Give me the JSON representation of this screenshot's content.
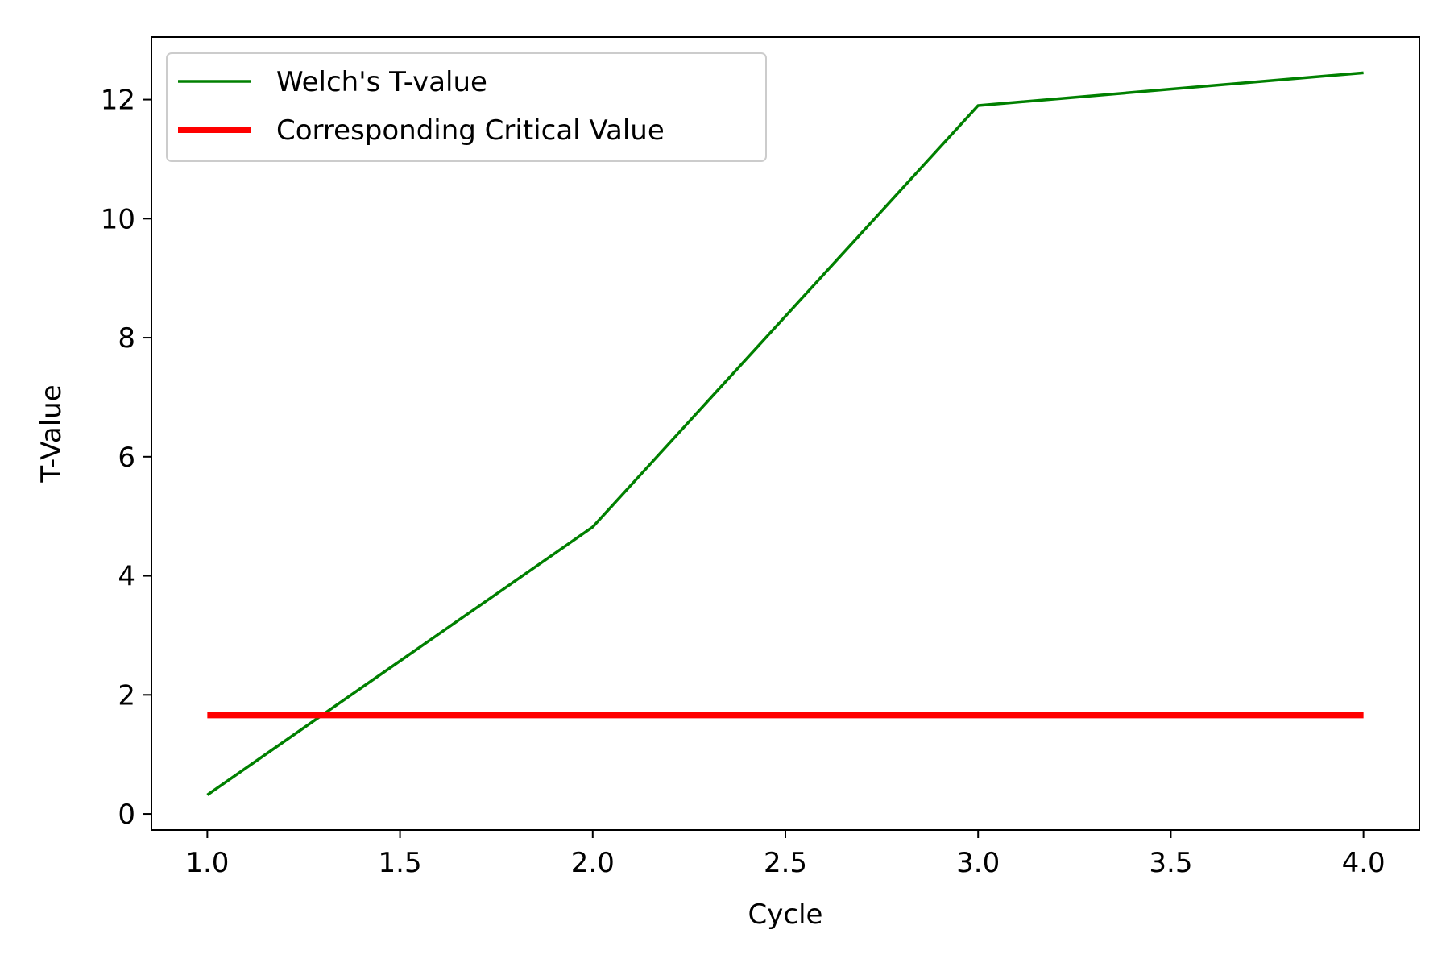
{
  "chart_data": {
    "type": "line",
    "title": "",
    "xlabel": "Cycle",
    "ylabel": "T-Value",
    "xlim": [
      0.855,
      4.145
    ],
    "ylim": [
      -0.27,
      13.05
    ],
    "xticks": [
      1.0,
      1.5,
      2.0,
      2.5,
      3.0,
      3.5,
      4.0
    ],
    "xtick_labels": [
      "1.0",
      "1.5",
      "2.0",
      "2.5",
      "3.0",
      "3.5",
      "4.0"
    ],
    "yticks": [
      0,
      2,
      4,
      6,
      8,
      10,
      12
    ],
    "ytick_labels": [
      "0",
      "2",
      "4",
      "6",
      "8",
      "10",
      "12"
    ],
    "grid": false,
    "legend_position": "upper-left",
    "series": [
      {
        "name": "Welch's T-value",
        "color": "#008000",
        "x": [
          1,
          2,
          3,
          4
        ],
        "y": [
          0.32,
          4.82,
          11.9,
          12.45
        ]
      },
      {
        "name": "Corresponding Critical Value",
        "color": "#ff0000",
        "x": [
          1,
          2,
          3,
          4
        ],
        "y": [
          1.66,
          1.66,
          1.66,
          1.66
        ]
      }
    ]
  }
}
